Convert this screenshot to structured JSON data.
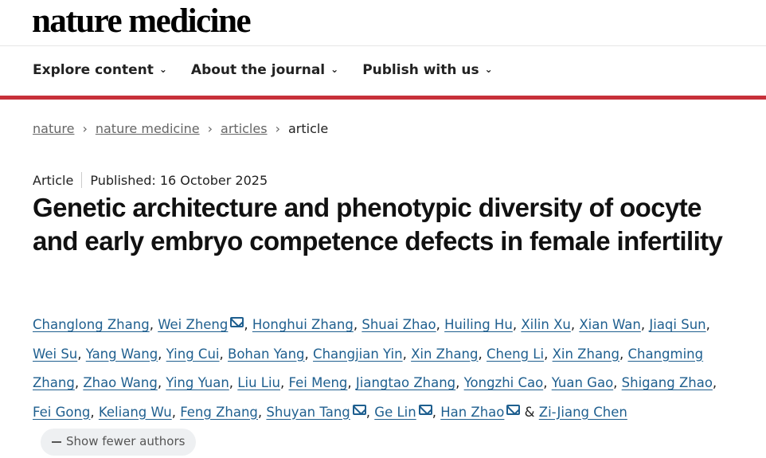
{
  "logo": "nature medicine",
  "nav": [
    {
      "label": "Explore content"
    },
    {
      "label": "About the journal"
    },
    {
      "label": "Publish with us"
    }
  ],
  "breadcrumb": [
    {
      "label": "nature"
    },
    {
      "label": "nature medicine"
    },
    {
      "label": "articles"
    },
    {
      "label": "article"
    }
  ],
  "meta": {
    "type": "Article",
    "published": "Published: 16 October 2025"
  },
  "title": "Genetic architecture and phenotypic diversity of oocyte and early embryo competence defects in female infertility",
  "authors": [
    {
      "name": "Changlong Zhang"
    },
    {
      "name": "Wei Zheng",
      "mail": true
    },
    {
      "name": "Honghui Zhang"
    },
    {
      "name": "Shuai Zhao"
    },
    {
      "name": "Huiling Hu"
    },
    {
      "name": "Xilin Xu"
    },
    {
      "name": "Xian Wan"
    },
    {
      "name": "Jiaqi Sun"
    },
    {
      "name": "Wei Su"
    },
    {
      "name": "Yang Wang"
    },
    {
      "name": "Ying Cui"
    },
    {
      "name": "Bohan Yang"
    },
    {
      "name": "Changjian Yin"
    },
    {
      "name": "Xin Zhang"
    },
    {
      "name": "Cheng Li"
    },
    {
      "name": "Xin Zhang"
    },
    {
      "name": "Changming Zhang"
    },
    {
      "name": "Zhao Wang"
    },
    {
      "name": "Ying Yuan"
    },
    {
      "name": "Liu Liu"
    },
    {
      "name": "Fei Meng"
    },
    {
      "name": "Jiangtao Zhang"
    },
    {
      "name": "Yongzhi Cao"
    },
    {
      "name": "Yuan Gao"
    },
    {
      "name": "Shigang Zhao"
    },
    {
      "name": "Fei Gong"
    },
    {
      "name": "Keliang Wu"
    },
    {
      "name": "Feng Zhang"
    },
    {
      "name": "Shuyan Tang",
      "mail": true
    },
    {
      "name": "Ge Lin",
      "mail": true
    },
    {
      "name": "Han Zhao",
      "mail": true
    },
    {
      "name": "Zi-Jiang Chen"
    }
  ],
  "show_fewer": "Show fewer authors",
  "colors": {
    "accent_red": "#c7303a",
    "link": "#1f5f8f"
  }
}
